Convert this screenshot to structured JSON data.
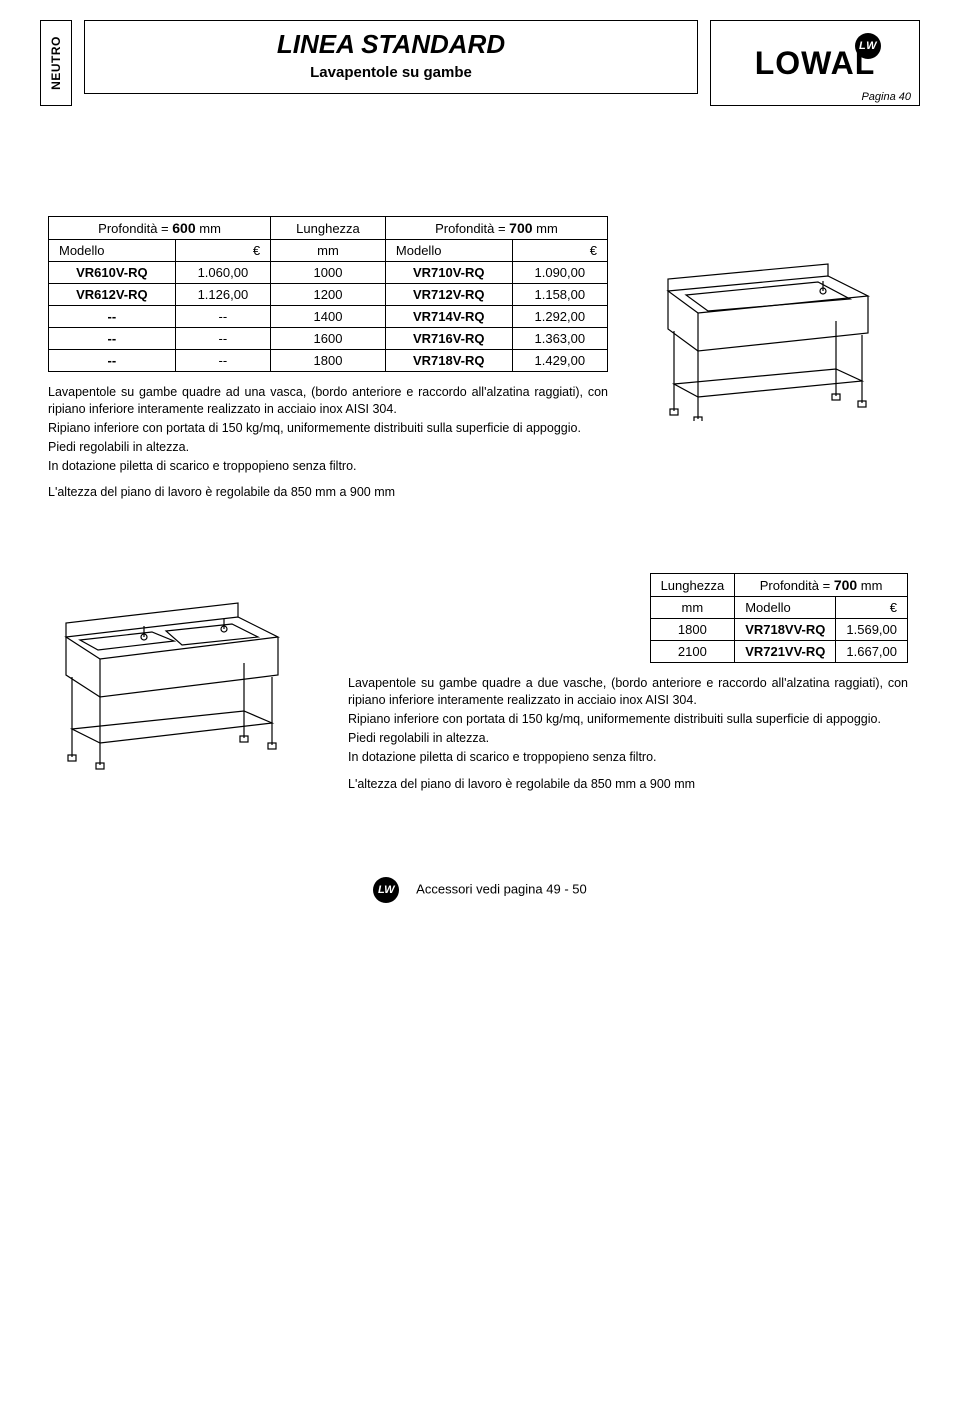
{
  "header": {
    "neutro": "NEUTRO",
    "title_main": "LINEA STANDARD",
    "title_sub": "Lavapentole su gambe",
    "logo_text": "LOWAL",
    "logo_badge": "LW",
    "page_label": "Pagina 40"
  },
  "table1": {
    "header_left": "Profondità  =",
    "depth_left": "600",
    "unit": "mm",
    "header_mid": "Lunghezza",
    "header_right": "Profondità  =",
    "depth_right": "700",
    "col_modello": "Modello",
    "col_euro": "€",
    "col_mm": "mm",
    "rows": [
      {
        "m1": "VR610V-RQ",
        "p1": "1.060,00",
        "len": "1000",
        "m2": "VR710V-RQ",
        "p2": "1.090,00"
      },
      {
        "m1": "VR612V-RQ",
        "p1": "1.126,00",
        "len": "1200",
        "m2": "VR712V-RQ",
        "p2": "1.158,00"
      },
      {
        "m1": "--",
        "p1": "--",
        "len": "1400",
        "m2": "VR714V-RQ",
        "p2": "1.292,00"
      },
      {
        "m1": "--",
        "p1": "--",
        "len": "1600",
        "m2": "VR716V-RQ",
        "p2": "1.363,00"
      },
      {
        "m1": "--",
        "p1": "--",
        "len": "1800",
        "m2": "VR718V-RQ",
        "p2": "1.429,00"
      }
    ]
  },
  "desc1": {
    "l1": "Lavapentole su gambe quadre ad una vasca, (bordo anteriore e raccordo all'alzatina raggiati), con ripiano inferiore interamente realizzato in acciaio inox AISI 304.",
    "l2": "Ripiano inferiore con portata di 150 kg/mq, uniformemente distribuiti sulla superficie di appoggio.",
    "l3": "Piedi regolabili in altezza.",
    "l4": "In dotazione piletta di scarico e troppopieno senza filtro.",
    "l5": "L'altezza del piano di lavoro è regolabile da 850 mm a 900 mm"
  },
  "table2": {
    "header_len": "Lunghezza",
    "header_depth": "Profondità  =",
    "depth": "700",
    "unit": "mm",
    "col_mm": "mm",
    "col_modello": "Modello",
    "col_euro": "€",
    "rows": [
      {
        "len": "1800",
        "m": "VR718VV-RQ",
        "p": "1.569,00"
      },
      {
        "len": "2100",
        "m": "VR721VV-RQ",
        "p": "1.667,00"
      }
    ]
  },
  "desc2": {
    "l1": "Lavapentole su gambe quadre a due vasche, (bordo anteriore e raccordo all'alzatina raggiati), con ripiano inferiore interamente realizzato in acciaio inox AISI 304.",
    "l2": "Ripiano inferiore con portata di 150 kg/mq, uniformemente distribuiti sulla superficie di appoggio.",
    "l3": "Piedi regolabili in altezza.",
    "l4": "In dotazione piletta di scarico e troppopieno senza filtro.",
    "l5": "L'altezza del piano di lavoro è regolabile da 850 mm a 900 mm"
  },
  "footer": {
    "badge": "LW",
    "text": "Accessori vedi pagina 49 - 50"
  }
}
